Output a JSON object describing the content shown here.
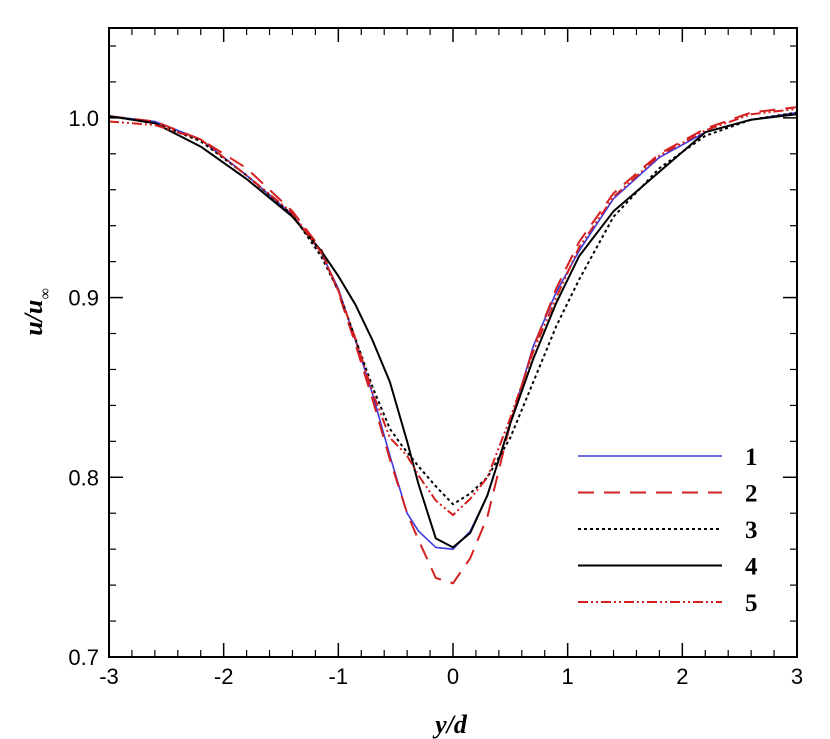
{
  "chart_data": {
    "type": "line",
    "xlabel": "y/d",
    "ylabel_main": "u/u",
    "ylabel_sub": "∞",
    "xlim": [
      -3,
      3
    ],
    "ylim": [
      0.7,
      1.05
    ],
    "xticks": [
      -3,
      -2,
      -1,
      0,
      1,
      2,
      3
    ],
    "xtick_labels": [
      "-3",
      "-2",
      "-1",
      "0",
      "1",
      "2",
      "3"
    ],
    "yticks": [
      0.7,
      0.8,
      0.9,
      1.0
    ],
    "ytick_labels": [
      "0.7",
      "0.8",
      "0.9",
      "1.0"
    ],
    "grid": false,
    "legend_position": "bottom-right",
    "series": [
      {
        "name": "1",
        "color": "#3a3ae0",
        "dash": "solid",
        "x": [
          -3,
          -2.6,
          -2.2,
          -1.8,
          -1.4,
          -1.15,
          -1.0,
          -0.85,
          -0.7,
          -0.55,
          -0.4,
          -0.3,
          -0.15,
          0.0,
          0.15,
          0.3,
          0.5,
          0.7,
          0.9,
          1.1,
          1.4,
          1.8,
          2.2,
          2.6,
          3.0
        ],
        "y": [
          1.001,
          0.998,
          0.988,
          0.968,
          0.946,
          0.925,
          0.905,
          0.876,
          0.846,
          0.812,
          0.78,
          0.77,
          0.761,
          0.76,
          0.77,
          0.79,
          0.83,
          0.873,
          0.903,
          0.926,
          0.955,
          0.978,
          0.992,
          0.999,
          1.003
        ]
      },
      {
        "name": "2",
        "color": "#d42020",
        "dash": "16,10",
        "x": [
          -3,
          -2.6,
          -2.2,
          -1.8,
          -1.4,
          -1.15,
          -1.0,
          -0.85,
          -0.7,
          -0.55,
          -0.4,
          -0.3,
          -0.15,
          0.0,
          0.15,
          0.3,
          0.5,
          0.7,
          0.9,
          1.1,
          1.4,
          1.8,
          2.2,
          2.6,
          3.0
        ],
        "y": [
          1.001,
          0.998,
          0.988,
          0.972,
          0.948,
          0.927,
          0.903,
          0.874,
          0.843,
          0.81,
          0.78,
          0.765,
          0.744,
          0.741,
          0.755,
          0.778,
          0.83,
          0.872,
          0.905,
          0.931,
          0.958,
          0.98,
          0.994,
          1.003,
          1.006
        ]
      },
      {
        "name": "3",
        "color": "#000000",
        "dash": "3,3",
        "x": [
          -3,
          -2.6,
          -2.2,
          -1.8,
          -1.4,
          -1.15,
          -1.0,
          -0.85,
          -0.7,
          -0.55,
          -0.45,
          -0.3,
          -0.15,
          0.0,
          0.15,
          0.3,
          0.5,
          0.7,
          0.9,
          1.1,
          1.4,
          1.8,
          2.2,
          2.6,
          3.0
        ],
        "y": [
          1.001,
          0.997,
          0.987,
          0.968,
          0.946,
          0.923,
          0.904,
          0.877,
          0.85,
          0.827,
          0.818,
          0.806,
          0.795,
          0.785,
          0.791,
          0.8,
          0.822,
          0.853,
          0.884,
          0.91,
          0.945,
          0.972,
          0.99,
          0.999,
          1.003
        ]
      },
      {
        "name": "4",
        "color": "#000000",
        "dash": "solid",
        "x": [
          -3,
          -2.6,
          -2.2,
          -1.8,
          -1.4,
          -1.15,
          -1.0,
          -0.85,
          -0.7,
          -0.55,
          -0.4,
          -0.3,
          -0.15,
          0.0,
          0.15,
          0.3,
          0.5,
          0.7,
          0.9,
          1.1,
          1.4,
          1.8,
          2.2,
          2.6,
          3.0
        ],
        "y": [
          1.001,
          0.997,
          0.984,
          0.966,
          0.945,
          0.926,
          0.912,
          0.896,
          0.876,
          0.853,
          0.82,
          0.796,
          0.766,
          0.761,
          0.769,
          0.79,
          0.83,
          0.866,
          0.897,
          0.923,
          0.948,
          0.97,
          0.992,
          0.999,
          1.002
        ]
      },
      {
        "name": "5",
        "color": "#d42020",
        "dash": "10,3,2,3,2,3",
        "x": [
          -3,
          -2.6,
          -2.2,
          -1.8,
          -1.4,
          -1.15,
          -1.0,
          -0.85,
          -0.7,
          -0.55,
          -0.4,
          -0.3,
          -0.15,
          0.0,
          0.15,
          0.3,
          0.5,
          0.7,
          0.9,
          1.1,
          1.4,
          1.8,
          2.2,
          2.6,
          3.0
        ],
        "y": [
          0.998,
          0.996,
          0.988,
          0.968,
          0.947,
          0.925,
          0.904,
          0.877,
          0.847,
          0.822,
          0.812,
          0.801,
          0.787,
          0.779,
          0.788,
          0.8,
          0.833,
          0.87,
          0.9,
          0.928,
          0.956,
          0.979,
          0.993,
          1.002,
          1.005
        ]
      }
    ]
  }
}
